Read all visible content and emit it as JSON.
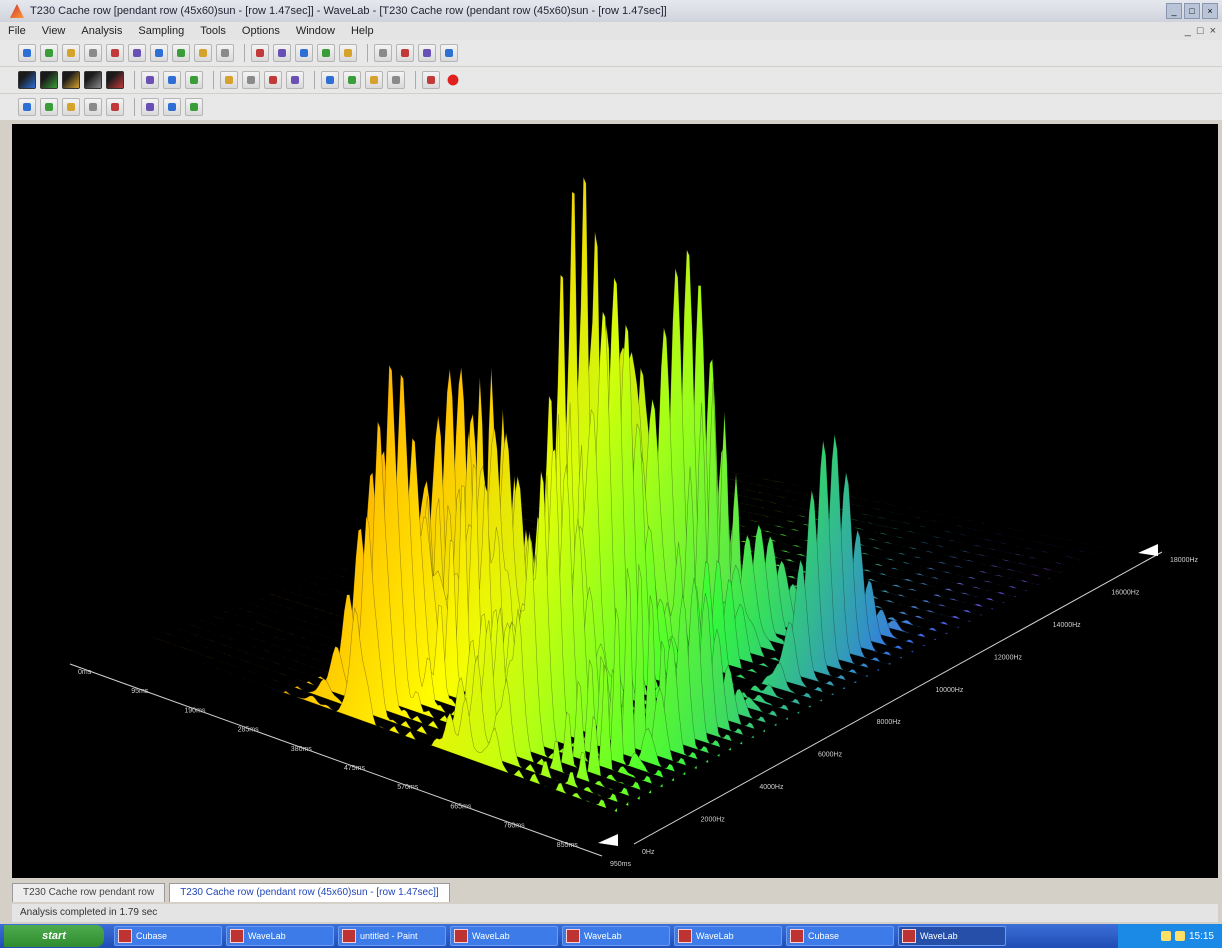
{
  "window": {
    "title": "T230 Cache row [pendant row (45x60)sun - [row 1.47sec]] - WaveLab - [T230 Cache row (pendant row (45x60)sun - [row 1.47sec]]",
    "controls": [
      "_",
      "□",
      "×"
    ]
  },
  "menu": {
    "items": [
      "File",
      "View",
      "Analysis",
      "Sampling",
      "Tools",
      "Options",
      "Window",
      "Help"
    ],
    "mdi_controls": [
      "_",
      "□",
      "×"
    ]
  },
  "toolbar1": {
    "icons": [
      "new-icon",
      "open-icon",
      "save-icon",
      "print-icon",
      "cut-icon",
      "copy-icon",
      "paste-icon",
      "undo-icon",
      "redo-icon",
      "zoom-icon",
      "select-icon",
      "grid-icon",
      "table-icon",
      "view-icon",
      "layout-icon",
      "arrow-left-icon",
      "arrow-right-icon",
      "curve-icon",
      "bell-icon"
    ]
  },
  "toolbar2": {
    "icons": [
      "spectrum-icon",
      "waterfall-icon",
      "sonogram-icon",
      "waveform-icon",
      "meter-icon",
      "tools-icon",
      "pencil-icon",
      "save-disk-icon",
      "play-icon",
      "loop-icon",
      "back-icon",
      "forward-icon",
      "fft-icon",
      "phase-icon",
      "stereo-icon",
      "mono-icon",
      "link-icon",
      "record-icon"
    ]
  },
  "toolbar3": {
    "icons": [
      "left-icon",
      "right-icon",
      "zoom-in-icon",
      "zoom-out-icon",
      "fit-icon",
      "window-icon",
      "prev-icon",
      "next-icon"
    ]
  },
  "chart_data": {
    "type": "area",
    "title": "",
    "time_ticks": [
      "0ms",
      "95ms",
      "190ms",
      "285ms",
      "380ms",
      "475ms",
      "570ms",
      "665ms",
      "760ms",
      "855ms",
      "950ms"
    ],
    "freq_ticks": [
      "0Hz",
      "2000Hz",
      "4000Hz",
      "6000Hz",
      "8000Hz",
      "10000Hz",
      "12000Hz",
      "14000Hz",
      "16000Hz",
      "18000Hz"
    ],
    "colors": {
      "low": "#ff1a00",
      "mid": "#ffff00",
      "peak": "#33ff33",
      "high_freq": "#3366ff",
      "top": "#cc33ff"
    },
    "grid": false
  },
  "document_tabs": [
    {
      "label": "T230 Cache row pendant row",
      "active": false
    },
    {
      "label": "T230 Cache row (pendant row (45x60)sun - [row 1.47sec]]",
      "active": true
    }
  ],
  "status": {
    "text": "Analysis completed in 1.79 sec"
  },
  "taskbar": {
    "start_label": "start",
    "buttons": [
      {
        "label": "Cubase",
        "active": false
      },
      {
        "label": "WaveLab",
        "active": false
      },
      {
        "label": "untitled - Paint",
        "active": false
      },
      {
        "label": "WaveLab",
        "active": false
      },
      {
        "label": "WaveLab",
        "active": false
      },
      {
        "label": "WaveLab",
        "active": false
      },
      {
        "label": "Cubase",
        "active": false
      },
      {
        "label": "WaveLab",
        "active": true
      }
    ],
    "clock": "15:15"
  }
}
